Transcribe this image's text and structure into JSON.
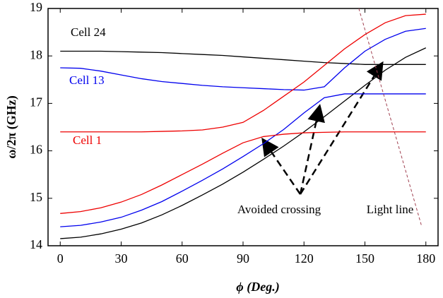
{
  "chart_data": {
    "type": "line",
    "xlabel": "ϕ (Deg.)",
    "ylabel": "ω/2π (GHz)",
    "x": [
      0,
      10,
      20,
      30,
      40,
      50,
      60,
      70,
      80,
      90,
      100,
      110,
      120,
      130,
      140,
      150,
      160,
      170,
      180
    ],
    "xlim": [
      -6,
      186
    ],
    "xticks": [
      0,
      30,
      60,
      90,
      120,
      150,
      180
    ],
    "ylim": [
      14,
      19
    ],
    "yticks": [
      14,
      15,
      16,
      17,
      18,
      19
    ],
    "series": [
      {
        "name": "Cell 24",
        "color": "#000000",
        "values": [
          18.1,
          18.1,
          18.1,
          18.09,
          18.08,
          18.07,
          18.05,
          18.03,
          18.01,
          17.98,
          17.95,
          17.92,
          17.89,
          17.86,
          17.84,
          17.82,
          17.82,
          17.82,
          17.82
        ]
      },
      {
        "color": "#000000",
        "values": [
          14.15,
          14.18,
          14.25,
          14.35,
          14.48,
          14.65,
          14.85,
          15.07,
          15.3,
          15.55,
          15.82,
          16.1,
          16.4,
          16.72,
          17.05,
          17.38,
          17.7,
          17.97,
          18.17
        ]
      },
      {
        "name": "Cell 13",
        "color": "#0000ee",
        "values": [
          17.75,
          17.74,
          17.68,
          17.6,
          17.52,
          17.46,
          17.42,
          17.38,
          17.35,
          17.33,
          17.31,
          17.29,
          17.28,
          17.35,
          17.75,
          18.1,
          18.35,
          18.52,
          18.58
        ]
      },
      {
        "color": "#0000ee",
        "values": [
          14.4,
          14.43,
          14.5,
          14.6,
          14.75,
          14.93,
          15.15,
          15.38,
          15.62,
          15.88,
          16.15,
          16.45,
          16.8,
          17.12,
          17.2,
          17.2,
          17.2,
          17.2,
          17.2
        ]
      },
      {
        "name": "Cell 1",
        "color": "#ee0000",
        "values": [
          16.4,
          16.4,
          16.4,
          16.4,
          16.4,
          16.41,
          16.42,
          16.44,
          16.5,
          16.6,
          16.85,
          17.15,
          17.45,
          17.8,
          18.15,
          18.45,
          18.7,
          18.85,
          18.88
        ]
      },
      {
        "color": "#ee0000",
        "values": [
          14.68,
          14.72,
          14.8,
          14.92,
          15.08,
          15.28,
          15.5,
          15.72,
          15.95,
          16.17,
          16.3,
          16.35,
          16.38,
          16.39,
          16.4,
          16.4,
          16.4,
          16.4,
          16.4
        ]
      },
      {
        "color": "#a04050",
        "dashed": true,
        "x": [
          147,
          178
        ],
        "values": [
          19,
          14.4
        ]
      }
    ],
    "annotations": [
      "Avoided crossing",
      "Light line"
    ]
  }
}
